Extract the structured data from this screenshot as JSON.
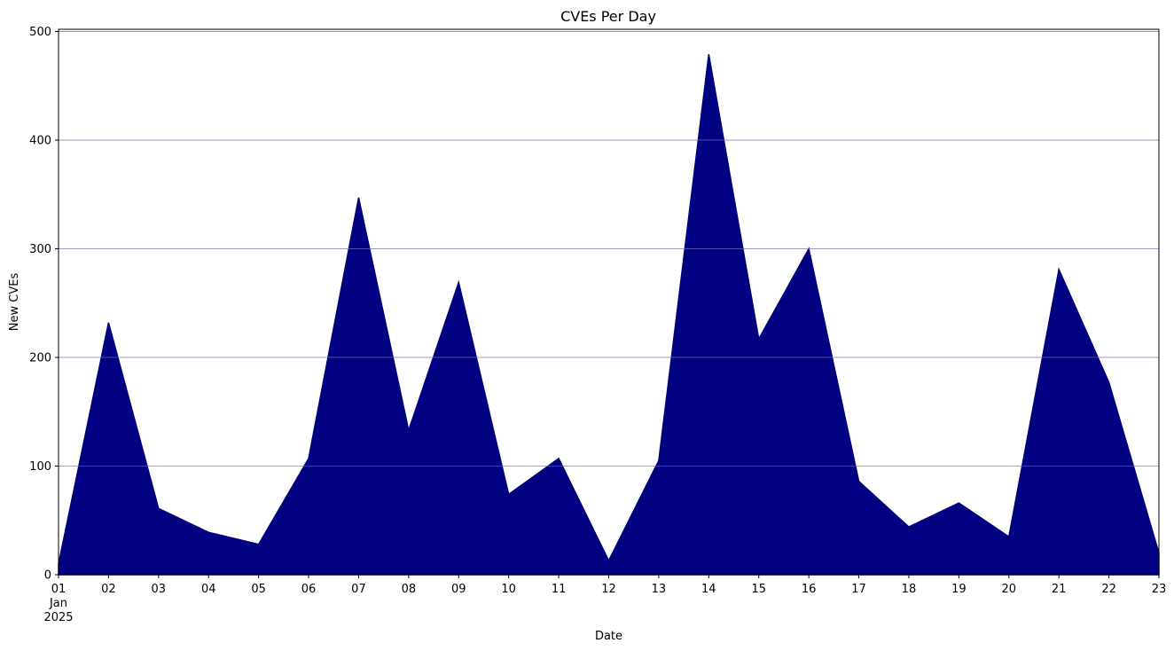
{
  "chart_data": {
    "type": "area",
    "title": "CVEs Per Day",
    "xlabel": "Date",
    "ylabel": "New CVEs",
    "x": [
      "2025-01-01",
      "2025-01-02",
      "2025-01-03",
      "2025-01-04",
      "2025-01-05",
      "2025-01-06",
      "2025-01-07",
      "2025-01-08",
      "2025-01-09",
      "2025-01-10",
      "2025-01-11",
      "2025-01-12",
      "2025-01-13",
      "2025-01-14",
      "2025-01-15",
      "2025-01-16",
      "2025-01-17",
      "2025-01-18",
      "2025-01-19",
      "2025-01-20",
      "2025-01-21",
      "2025-01-22",
      "2025-01-23"
    ],
    "x_tick_labels": [
      "01",
      "02",
      "03",
      "04",
      "05",
      "06",
      "07",
      "08",
      "09",
      "10",
      "11",
      "12",
      "13",
      "14",
      "15",
      "16",
      "17",
      "18",
      "19",
      "20",
      "21",
      "22",
      "23"
    ],
    "x_tick_sublabel": [
      "Jan",
      "2025"
    ],
    "values": [
      10,
      232,
      61,
      39,
      28,
      107,
      347,
      133,
      269,
      74,
      107,
      13,
      105,
      479,
      217,
      300,
      86,
      44,
      66,
      35,
      281,
      177,
      20
    ],
    "y_ticks": [
      0,
      100,
      200,
      300,
      400,
      500
    ],
    "ylim": [
      0,
      502
    ],
    "grid": "y-major",
    "legend": "none",
    "colors": {
      "fill": "#000080",
      "grid": "#b0b0b0",
      "axis": "#000000"
    }
  }
}
